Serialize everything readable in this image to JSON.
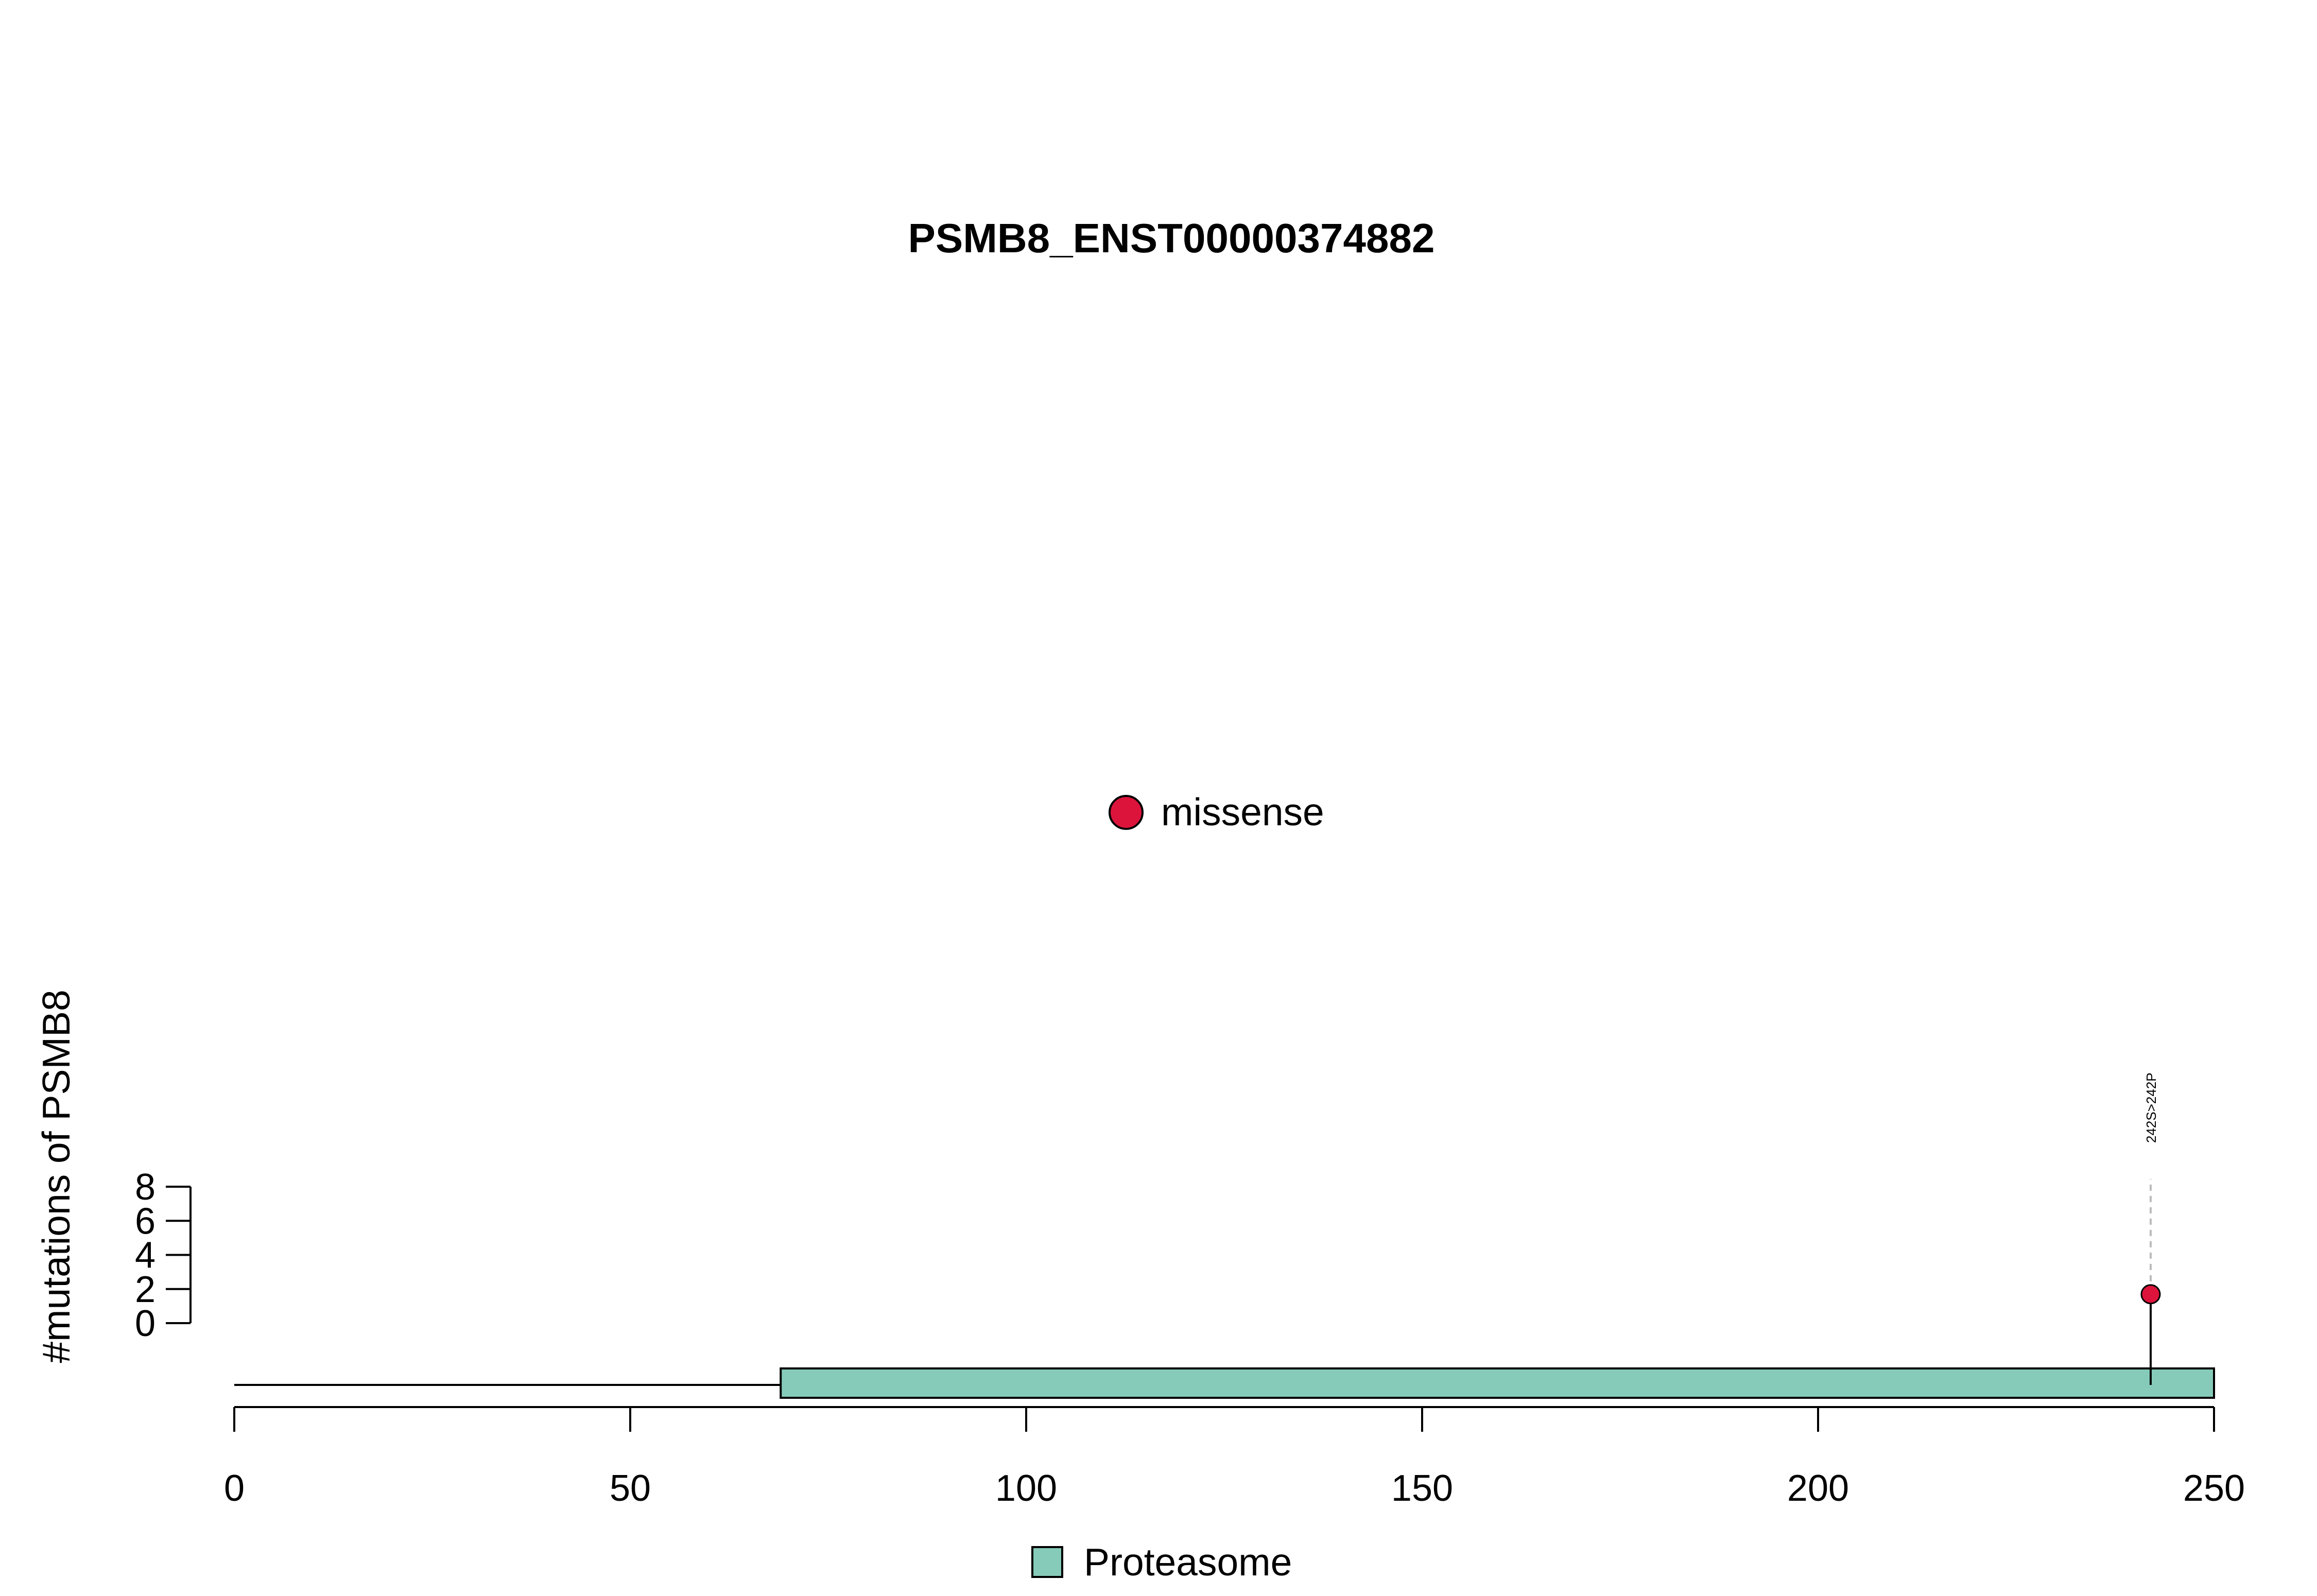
{
  "colors": {
    "missense": "#DC143C",
    "domain_fill": "#86CBB9",
    "stroke": "#000000",
    "guide": "#BBBBBB"
  },
  "chart_data": {
    "type": "lollipop",
    "title": "PSMB8_ENST00000374882",
    "ylabel": "#mutations of PSMB8",
    "xlim": [
      0,
      250
    ],
    "x_ticks": [
      0,
      50,
      100,
      150,
      200,
      250
    ],
    "x_tick_labels": [
      "0",
      "50",
      "100",
      "150",
      "200",
      "250"
    ],
    "y_ticks": [
      0,
      2,
      4,
      6,
      8
    ],
    "y_tick_labels": [
      "0",
      "2",
      "4",
      "6",
      "8"
    ],
    "ylim": [
      0,
      8
    ],
    "protein_length": 250,
    "domains": [
      {
        "name": "Proteasome",
        "start": 69,
        "end": 250
      }
    ],
    "mutations": [
      {
        "position": 242,
        "count": 1,
        "label": "242S>242P",
        "type": "missense"
      }
    ],
    "mutation_legend": [
      {
        "label": "missense",
        "type": "missense"
      }
    ],
    "domain_legend": [
      {
        "label": "Proteasome"
      }
    ]
  }
}
